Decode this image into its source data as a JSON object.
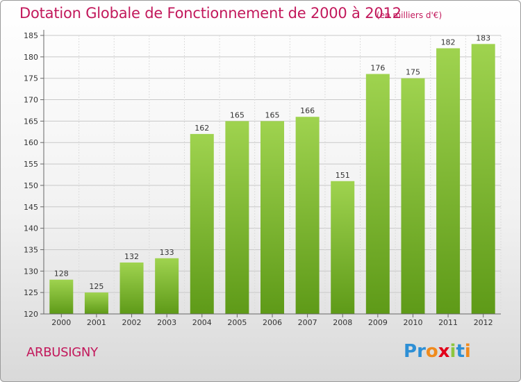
{
  "header": {
    "title": "Dotation Globale de Fonctionnement de 2000 à 2012",
    "unit_note": "(en milliers d'€)"
  },
  "footer": {
    "commune": "ARBUSIGNY",
    "logo": "Proxiti"
  },
  "colors": {
    "accent": "#c2185b",
    "bar_top": "#9fd34f",
    "bar_bottom": "#5e9a18",
    "logo_letters": [
      "#2d8fd5",
      "#2d8fd5",
      "#f08a1c",
      "#e2001a",
      "#8dc63f",
      "#2d8fd5",
      "#f08a1c"
    ]
  },
  "chart_data": {
    "type": "bar",
    "title": "Dotation Globale de Fonctionnement de 2000 à 2012",
    "categories": [
      "2000",
      "2001",
      "2002",
      "2003",
      "2004",
      "2005",
      "2006",
      "2007",
      "2008",
      "2009",
      "2010",
      "2011",
      "2012"
    ],
    "values": [
      128,
      125,
      132,
      133,
      162,
      165,
      165,
      166,
      151,
      176,
      175,
      182,
      183
    ],
    "ylim": [
      120,
      185
    ],
    "yticks": [
      120,
      125,
      130,
      135,
      140,
      145,
      150,
      155,
      160,
      165,
      170,
      175,
      180,
      185
    ],
    "grid": true,
    "legend": "none"
  }
}
